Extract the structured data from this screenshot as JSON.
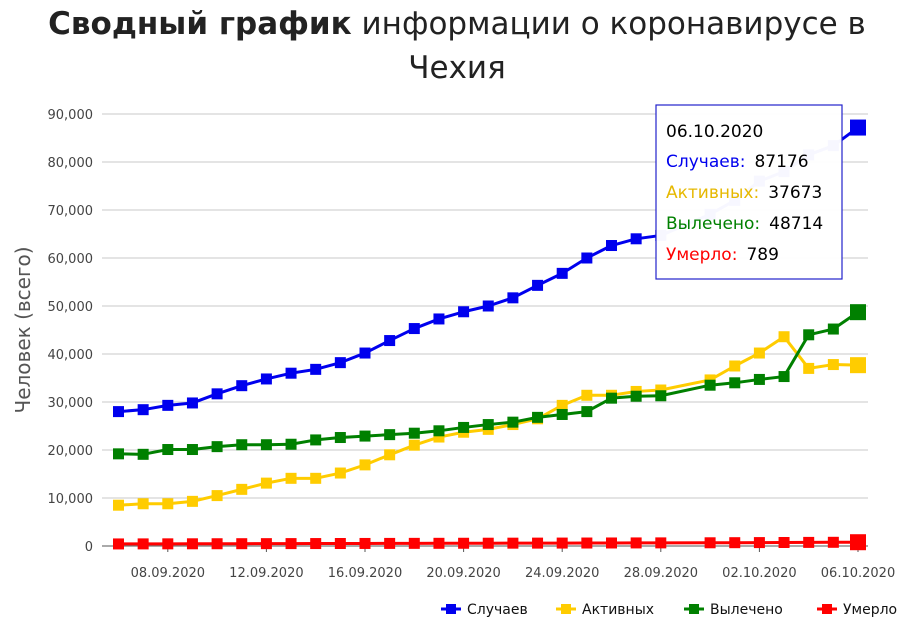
{
  "title": {
    "bold": "Сводный график",
    "rest_line1": "информации о коронавирусе в",
    "line2": "Чехия"
  },
  "chart_data": {
    "type": "line",
    "ylabel": "Человек (всего)",
    "ylim": [
      0,
      90000
    ],
    "yticks": [
      "0",
      "10,000",
      "20,000",
      "30,000",
      "40,000",
      "50,000",
      "60,000",
      "70,000",
      "80,000",
      "90,000"
    ],
    "x_tick_labels": [
      "08.09.2020",
      "12.09.2020",
      "16.09.2020",
      "20.09.2020",
      "24.09.2020",
      "28.09.2020",
      "02.10.2020",
      "06.10.2020"
    ],
    "x_dates": [
      "2020-09-06",
      "2020-09-07",
      "2020-09-08",
      "2020-09-09",
      "2020-09-10",
      "2020-09-11",
      "2020-09-12",
      "2020-09-13",
      "2020-09-14",
      "2020-09-15",
      "2020-09-16",
      "2020-09-17",
      "2020-09-18",
      "2020-09-19",
      "2020-09-20",
      "2020-09-21",
      "2020-09-22",
      "2020-09-23",
      "2020-09-24",
      "2020-09-25",
      "2020-09-26",
      "2020-09-27",
      "2020-09-28",
      "2020-09-30",
      "2020-10-01",
      "2020-10-02",
      "2020-10-03",
      "2020-10-04",
      "2020-10-05",
      "2020-10-06"
    ],
    "series": [
      {
        "name": "Случаев",
        "color": "#0000ee",
        "values": [
          28000,
          28400,
          29300,
          29800,
          31700,
          33400,
          34800,
          36000,
          36800,
          38200,
          40200,
          42800,
          45300,
          47300,
          48800,
          50000,
          51700,
          54300,
          56800,
          60000,
          62600,
          64000,
          64700,
          69100,
          72000,
          76000,
          78000,
          81500,
          83400,
          87176
        ]
      },
      {
        "name": "Активных",
        "color": "#ffcc00",
        "values": [
          8500,
          8800,
          8800,
          9300,
          10500,
          11800,
          13100,
          14100,
          14100,
          15200,
          16900,
          19000,
          21000,
          22700,
          23700,
          24300,
          25300,
          26500,
          29300,
          31400,
          31400,
          32200,
          32500,
          34600,
          37500,
          40200,
          43600,
          37000,
          37800,
          37673
        ]
      },
      {
        "name": "Вылечено",
        "color": "#008000",
        "values": [
          19200,
          19100,
          20100,
          20100,
          20700,
          21100,
          21100,
          21200,
          22100,
          22600,
          22900,
          23200,
          23500,
          24000,
          24700,
          25300,
          25800,
          26800,
          27400,
          28000,
          30800,
          31200,
          31300,
          33500,
          34000,
          34700,
          35300,
          44000,
          45200,
          48714
        ]
      },
      {
        "name": "Умерло",
        "color": "#ff0000",
        "values": [
          430,
          440,
          450,
          460,
          470,
          480,
          490,
          500,
          510,
          520,
          530,
          540,
          550,
          560,
          570,
          580,
          590,
          600,
          610,
          620,
          630,
          640,
          650,
          670,
          690,
          710,
          730,
          750,
          770,
          789
        ]
      }
    ],
    "legend_position": "bottom-right",
    "grid": true
  },
  "tooltip": {
    "date": "06.10.2020",
    "rows": [
      {
        "label": "Случаев:",
        "value": "87176",
        "color": "#0000ee"
      },
      {
        "label": "Активных:",
        "value": "37673",
        "color": "#e6b800"
      },
      {
        "label": "Вылечено:",
        "value": "48714",
        "color": "#008000"
      },
      {
        "label": "Умерло:",
        "value": "789",
        "color": "#ff0000"
      }
    ]
  }
}
